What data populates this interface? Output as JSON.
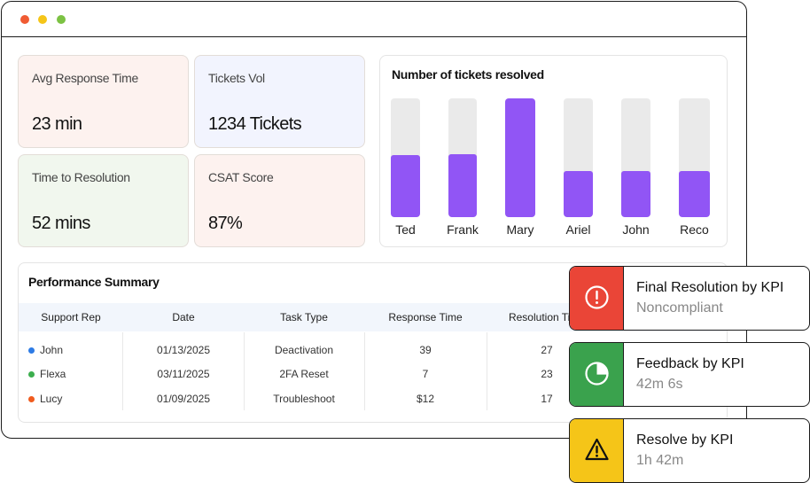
{
  "window": {
    "controls": [
      {
        "name": "close",
        "color": "#f05b33"
      },
      {
        "name": "minimize",
        "color": "#f5c518"
      },
      {
        "name": "maximize",
        "color": "#7cc243"
      }
    ]
  },
  "kpis": [
    {
      "label": "Avg Response Time",
      "value": "23 min",
      "bg": "#fdf2ef"
    },
    {
      "label": "Tickets Vol",
      "value": "1234 Tickets",
      "bg": "#f2f4fe"
    },
    {
      "label": "Time to Resolution",
      "value": "52 mins",
      "bg": "#f1f7ee"
    },
    {
      "label": "CSAT Score",
      "value": "87%",
      "bg": "#fdf2ef"
    }
  ],
  "chart_data": {
    "type": "bar",
    "title": "Number of tickets resolved",
    "categories": [
      "Ted",
      "Frank",
      "Mary",
      "Ariel",
      "John",
      "Reco"
    ],
    "values": [
      52,
      53,
      100,
      39,
      39,
      39
    ],
    "ylim": [
      0,
      100
    ],
    "fill_color": "#9155f5",
    "track_color": "#eaeaea"
  },
  "summary": {
    "title": "Performance Summary",
    "columns": [
      "Support Rep",
      "Date",
      "Task Type",
      "Response Time",
      "Resolution Time"
    ],
    "rows": [
      {
        "rep": "John",
        "dot": "#2d7be5",
        "date": "01/13/2025",
        "task": "Deactivation",
        "response": "39",
        "resolution": "27"
      },
      {
        "rep": "Flexa",
        "dot": "#3cae4e",
        "date": "03/11/2025",
        "task": "2FA Reset",
        "response": "7",
        "resolution": "23"
      },
      {
        "rep": "Lucy",
        "dot": "#f05b1e",
        "date": "01/09/2025",
        "task": "Troubleshoot",
        "response": "$12",
        "resolution": "17"
      }
    ]
  },
  "notifications": [
    {
      "title": "Final Resolution by KPI",
      "subtitle": "Noncompliant",
      "icon": "alert-circle-icon",
      "color": "#ea4537"
    },
    {
      "title": "Feedback by KPI",
      "subtitle": "42m 6s",
      "icon": "pie-chart-icon",
      "color": "#3aa24d"
    },
    {
      "title": "Resolve by KPI",
      "subtitle": "1h 42m",
      "icon": "warning-triangle-icon",
      "color": "#f5c518"
    }
  ]
}
